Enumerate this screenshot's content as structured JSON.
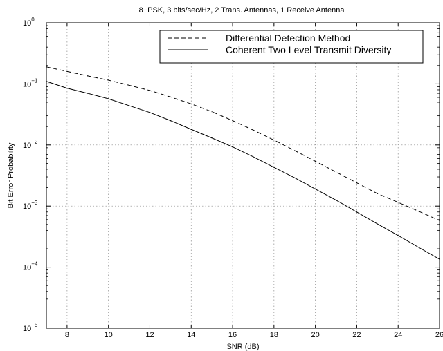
{
  "chart_data": {
    "type": "line",
    "title": "8−PSK, 3 bits/sec/Hz, 2 Trans. Antennas, 1 Receive Antenna",
    "xlabel": "SNR (dB)",
    "ylabel": "Bit Error Probability",
    "xlim": [
      7,
      26
    ],
    "ylim": [
      1e-05,
      1
    ],
    "yscale": "log",
    "grid": true,
    "legend_position": "top-right",
    "x_ticks": [
      8,
      10,
      12,
      14,
      16,
      18,
      20,
      22,
      24,
      26
    ],
    "y_ticks": [
      {
        "value": 1e-05,
        "base": "10",
        "exp": "−5"
      },
      {
        "value": 0.0001,
        "base": "10",
        "exp": "−4"
      },
      {
        "value": 0.001,
        "base": "10",
        "exp": "−3"
      },
      {
        "value": 0.01,
        "base": "10",
        "exp": "−2"
      },
      {
        "value": 0.1,
        "base": "10",
        "exp": "−1"
      },
      {
        "value": 1,
        "base": "10",
        "exp": "0"
      }
    ],
    "series": [
      {
        "name": "Differential Detection Method",
        "style": "dashed",
        "color": "#000000",
        "x": [
          7,
          8,
          9,
          10,
          11,
          12,
          13,
          14,
          15,
          16,
          17,
          18,
          19,
          20,
          21,
          22,
          23,
          24,
          25,
          26
        ],
        "y": [
          0.19,
          0.16,
          0.135,
          0.115,
          0.095,
          0.078,
          0.061,
          0.047,
          0.035,
          0.025,
          0.0175,
          0.012,
          0.0081,
          0.0054,
          0.0036,
          0.0024,
          0.0016,
          0.00115,
          0.00082,
          0.00058
        ]
      },
      {
        "name": "Coherent Two Level Transmit Diversity",
        "style": "solid",
        "color": "#000000",
        "x": [
          7,
          8,
          9,
          10,
          11,
          12,
          13,
          14,
          15,
          16,
          17,
          18,
          19,
          20,
          21,
          22,
          23,
          24,
          25,
          26
        ],
        "y": [
          0.11,
          0.085,
          0.07,
          0.057,
          0.044,
          0.034,
          0.025,
          0.018,
          0.013,
          0.0093,
          0.0064,
          0.0043,
          0.0029,
          0.0019,
          0.00125,
          0.0008,
          0.00051,
          0.00033,
          0.00021,
          0.000135
        ]
      }
    ]
  }
}
